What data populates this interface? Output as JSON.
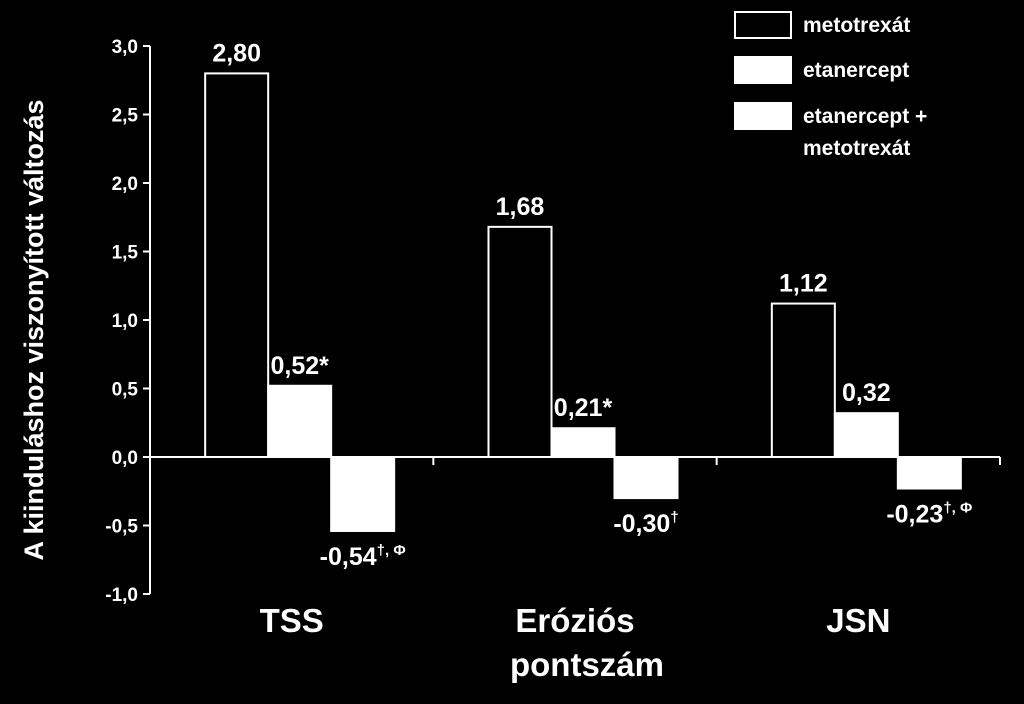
{
  "chart_data": {
    "type": "bar",
    "ylabel": "A kiinduláshoz viszonyított változás",
    "ylim": [
      -1.0,
      3.0
    ],
    "yticks": [
      "3,0",
      "2,5",
      "2,0",
      "1,5",
      "1,0",
      "0,5",
      "0,0",
      "-0,5",
      "-1,0"
    ],
    "categories": [
      {
        "lines": [
          "TSS"
        ]
      },
      {
        "lines": [
          "Eróziós",
          "pontszám"
        ]
      },
      {
        "lines": [
          "JSN"
        ]
      }
    ],
    "series": [
      {
        "name": "metotrexát",
        "values": [
          2.8,
          1.68,
          1.12
        ],
        "fill": "#000000",
        "labels": [
          {
            "text": "2,80",
            "sup": ""
          },
          {
            "text": "1,68",
            "sup": ""
          },
          {
            "text": "1,12",
            "sup": ""
          }
        ]
      },
      {
        "name": "etanercept",
        "values": [
          0.52,
          0.21,
          0.32
        ],
        "fill": "#ffffff",
        "labels": [
          {
            "text": "0,52*",
            "sup": ""
          },
          {
            "text": "0,21*",
            "sup": ""
          },
          {
            "text": "0,32",
            "sup": ""
          }
        ]
      },
      {
        "name": "etanercept + metotrexát",
        "name_lines": [
          "etanercept +",
          "metotrexát"
        ],
        "values": [
          -0.54,
          -0.3,
          -0.23
        ],
        "fill": "#ffffff",
        "labels": [
          {
            "text": "-0,54",
            "sup": "†, Φ"
          },
          {
            "text": "-0,30",
            "sup": "†"
          },
          {
            "text": "-0,23",
            "sup": "†, Φ"
          }
        ]
      }
    ],
    "grid": false,
    "legend": "top-right"
  }
}
